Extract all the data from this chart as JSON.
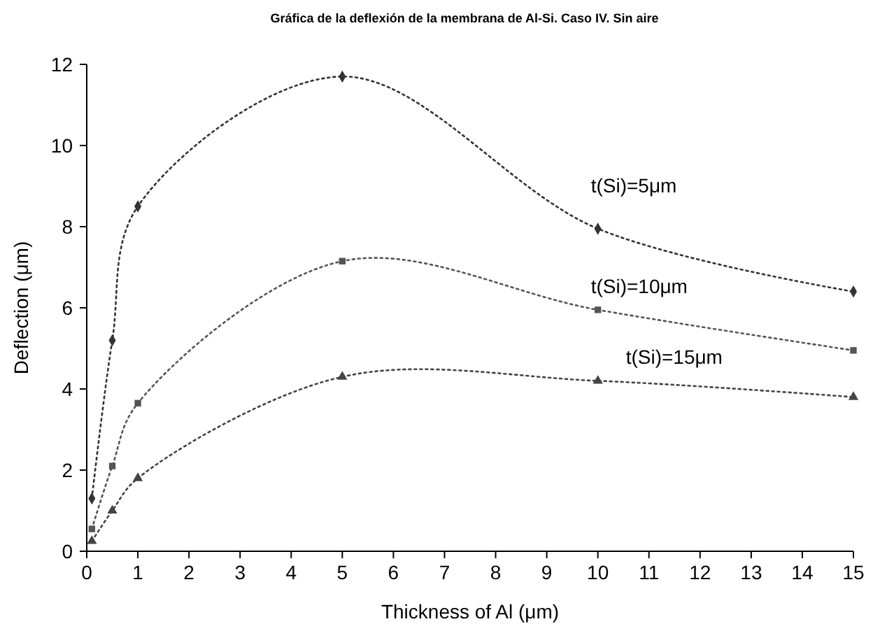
{
  "chart_data": {
    "type": "line",
    "title": "Gráfica de la deflexión de la membrana de Al-Si. Caso IV. Sin aire",
    "xlabel": "Thickness of Al (μm)",
    "ylabel": "Deflection (μm)",
    "x": [
      0.1,
      0.5,
      1,
      5,
      10,
      15
    ],
    "series": [
      {
        "name": "t(Si)=5μm",
        "color": "#333333",
        "marker": "diamond",
        "values": [
          1.3,
          5.2,
          8.5,
          11.7,
          7.95,
          6.4
        ]
      },
      {
        "name": "t(Si)=10μm",
        "color": "#555555",
        "marker": "square",
        "values": [
          0.55,
          2.1,
          3.65,
          7.15,
          5.95,
          4.95
        ]
      },
      {
        "name": "t(Si)=15μm",
        "color": "#444444",
        "marker": "triangle",
        "values": [
          0.25,
          1.0,
          1.8,
          4.3,
          4.2,
          3.8
        ]
      }
    ],
    "xlim": [
      0,
      15
    ],
    "xticks": [
      0,
      1,
      2,
      3,
      4,
      5,
      6,
      7,
      8,
      9,
      10,
      11,
      12,
      13,
      14,
      15
    ],
    "ylim": [
      0,
      12
    ],
    "yticks": [
      0,
      2,
      4,
      6,
      8,
      10,
      12
    ],
    "line_style": "dotted",
    "grid": false
  }
}
